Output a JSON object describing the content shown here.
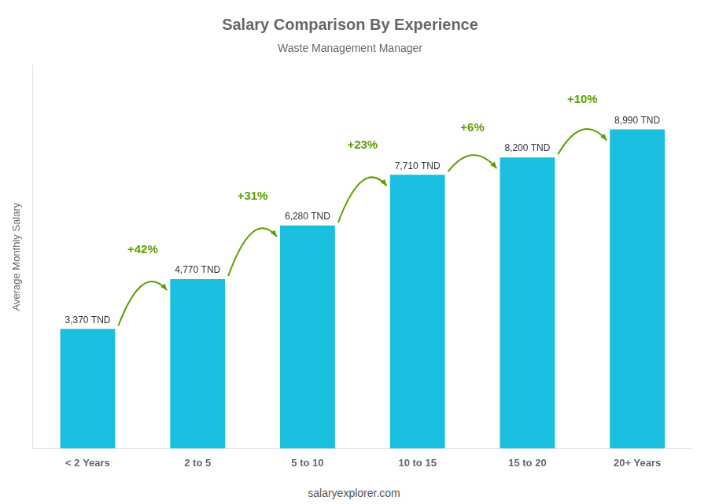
{
  "chart_data": {
    "type": "bar",
    "title": "Salary Comparison By Experience",
    "subtitle": "Waste Management Manager",
    "ylabel": "Average Monthly Salary",
    "categories": [
      "< 2 Years",
      "2 to 5",
      "5 to 10",
      "10 to 15",
      "15 to 20",
      "20+ Years"
    ],
    "values": [
      3370,
      4770,
      6280,
      7710,
      8200,
      8990
    ],
    "value_labels": [
      "3,370 TND",
      "4,770 TND",
      "6,280 TND",
      "7,710 TND",
      "8,200 TND",
      "8,990 TND"
    ],
    "data_labels": true,
    "annotations": [
      "+42%",
      "+31%",
      "+23%",
      "+6%",
      "+10%"
    ],
    "footer": "salaryexplorer.com",
    "color": "#1abfdf",
    "ylim": [
      0,
      10800
    ],
    "grid": false,
    "tick_labels": "x"
  }
}
